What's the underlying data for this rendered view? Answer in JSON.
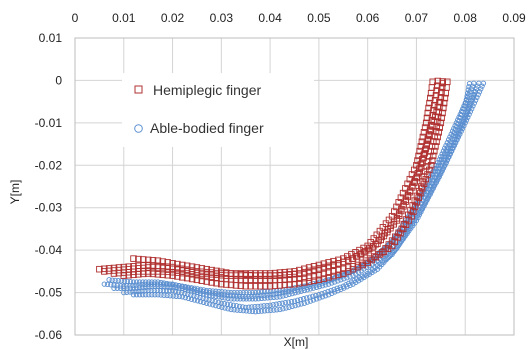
{
  "chart_data": {
    "type": "scatter",
    "xlabel": "X[m]",
    "ylabel": "Y[m]",
    "xlim": [
      0,
      0.09
    ],
    "ylim": [
      -0.06,
      0.01
    ],
    "x_ticks": [
      "0",
      "0.01",
      "0.02",
      "0.03",
      "0.04",
      "0.05",
      "0.06",
      "0.07",
      "0.08",
      "0.09"
    ],
    "y_ticks": [
      "0.01",
      "0",
      "-0.01",
      "-0.02",
      "-0.03",
      "-0.04",
      "-0.05",
      "-0.06"
    ],
    "x_axis_position": "top",
    "grid": true,
    "legend_position": "upper-left",
    "colors": {
      "hemiplegic": "#b03030",
      "able_bodied": "#5b8fd0"
    },
    "series": [
      {
        "name": "Hemiplegic finger",
        "marker": "square",
        "curves": [
          [
            [
              0.005,
              -0.0445
            ],
            [
              0.01,
              -0.044
            ],
            [
              0.015,
              -0.0435
            ],
            [
              0.02,
              -0.044
            ],
            [
              0.025,
              -0.045
            ],
            [
              0.03,
              -0.0455
            ],
            [
              0.035,
              -0.0455
            ],
            [
              0.04,
              -0.0455
            ],
            [
              0.045,
              -0.045
            ],
            [
              0.05,
              -0.0435
            ],
            [
              0.055,
              -0.042
            ],
            [
              0.06,
              -0.039
            ],
            [
              0.065,
              -0.032
            ],
            [
              0.07,
              -0.02
            ],
            [
              0.072,
              -0.01
            ],
            [
              0.073,
              -0.003
            ],
            [
              0.0735,
              0.001
            ]
          ],
          [
            [
              0.006,
              -0.045
            ],
            [
              0.011,
              -0.0445
            ],
            [
              0.016,
              -0.044
            ],
            [
              0.021,
              -0.0445
            ],
            [
              0.026,
              -0.0455
            ],
            [
              0.031,
              -0.046
            ],
            [
              0.036,
              -0.046
            ],
            [
              0.041,
              -0.046
            ],
            [
              0.046,
              -0.0455
            ],
            [
              0.051,
              -0.044
            ],
            [
              0.056,
              -0.0425
            ],
            [
              0.061,
              -0.0395
            ],
            [
              0.066,
              -0.0325
            ],
            [
              0.071,
              -0.0205
            ],
            [
              0.073,
              -0.0105
            ],
            [
              0.074,
              -0.0035
            ],
            [
              0.0745,
              0.001
            ]
          ],
          [
            [
              0.008,
              -0.0455
            ],
            [
              0.013,
              -0.045
            ],
            [
              0.018,
              -0.045
            ],
            [
              0.023,
              -0.0455
            ],
            [
              0.028,
              -0.0465
            ],
            [
              0.033,
              -0.047
            ],
            [
              0.038,
              -0.047
            ],
            [
              0.043,
              -0.047
            ],
            [
              0.048,
              -0.0465
            ],
            [
              0.053,
              -0.045
            ],
            [
              0.058,
              -0.0435
            ],
            [
              0.063,
              -0.0405
            ],
            [
              0.067,
              -0.035
            ],
            [
              0.071,
              -0.025
            ],
            [
              0.074,
              -0.012
            ],
            [
              0.075,
              -0.004
            ],
            [
              0.0755,
              0.001
            ]
          ],
          [
            [
              0.01,
              -0.046
            ],
            [
              0.015,
              -0.0455
            ],
            [
              0.02,
              -0.046
            ],
            [
              0.025,
              -0.047
            ],
            [
              0.03,
              -0.048
            ],
            [
              0.035,
              -0.0485
            ],
            [
              0.04,
              -0.0485
            ],
            [
              0.045,
              -0.048
            ],
            [
              0.05,
              -0.047
            ],
            [
              0.055,
              -0.0455
            ],
            [
              0.06,
              -0.043
            ],
            [
              0.065,
              -0.039
            ],
            [
              0.069,
              -0.032
            ],
            [
              0.073,
              -0.02
            ],
            [
              0.075,
              -0.01
            ],
            [
              0.076,
              -0.003
            ],
            [
              0.0765,
              0.001
            ]
          ],
          [
            [
              0.012,
              -0.042
            ],
            [
              0.017,
              -0.0425
            ],
            [
              0.022,
              -0.0435
            ],
            [
              0.027,
              -0.0445
            ],
            [
              0.032,
              -0.0455
            ],
            [
              0.037,
              -0.046
            ],
            [
              0.042,
              -0.046
            ],
            [
              0.047,
              -0.0455
            ],
            [
              0.052,
              -0.044
            ],
            [
              0.057,
              -0.042
            ],
            [
              0.062,
              -0.0385
            ],
            [
              0.066,
              -0.033
            ],
            [
              0.07,
              -0.023
            ],
            [
              0.073,
              -0.012
            ],
            [
              0.075,
              -0.004
            ],
            [
              0.0755,
              0.0005
            ]
          ]
        ]
      },
      {
        "name": "Able-bodied finger",
        "marker": "circle",
        "curves": [
          [
            [
              0.006,
              -0.048
            ],
            [
              0.01,
              -0.0485
            ],
            [
              0.015,
              -0.048
            ],
            [
              0.02,
              -0.048
            ],
            [
              0.025,
              -0.0495
            ],
            [
              0.03,
              -0.0505
            ],
            [
              0.035,
              -0.051
            ],
            [
              0.04,
              -0.0505
            ],
            [
              0.045,
              -0.0495
            ],
            [
              0.05,
              -0.048
            ],
            [
              0.055,
              -0.046
            ],
            [
              0.06,
              -0.043
            ],
            [
              0.065,
              -0.038
            ],
            [
              0.07,
              -0.029
            ],
            [
              0.075,
              -0.018
            ],
            [
              0.079,
              -0.008
            ],
            [
              0.082,
              0.0
            ]
          ],
          [
            [
              0.008,
              -0.049
            ],
            [
              0.012,
              -0.049
            ],
            [
              0.017,
              -0.0485
            ],
            [
              0.022,
              -0.049
            ],
            [
              0.027,
              -0.0505
            ],
            [
              0.032,
              -0.0515
            ],
            [
              0.037,
              -0.0515
            ],
            [
              0.042,
              -0.051
            ],
            [
              0.047,
              -0.0495
            ],
            [
              0.052,
              -0.048
            ],
            [
              0.057,
              -0.046
            ],
            [
              0.062,
              -0.0425
            ],
            [
              0.067,
              -0.037
            ],
            [
              0.072,
              -0.027
            ],
            [
              0.077,
              -0.016
            ],
            [
              0.081,
              -0.006
            ],
            [
              0.083,
              0.0
            ]
          ],
          [
            [
              0.01,
              -0.05
            ],
            [
              0.015,
              -0.0495
            ],
            [
              0.02,
              -0.0495
            ],
            [
              0.025,
              -0.051
            ],
            [
              0.03,
              -0.0525
            ],
            [
              0.035,
              -0.0535
            ],
            [
              0.04,
              -0.053
            ],
            [
              0.045,
              -0.052
            ],
            [
              0.05,
              -0.0505
            ],
            [
              0.055,
              -0.0485
            ],
            [
              0.06,
              -0.0455
            ],
            [
              0.065,
              -0.041
            ],
            [
              0.07,
              -0.033
            ],
            [
              0.075,
              -0.022
            ],
            [
              0.08,
              -0.01
            ],
            [
              0.084,
              0.0
            ]
          ],
          [
            [
              0.012,
              -0.0505
            ],
            [
              0.017,
              -0.0505
            ],
            [
              0.022,
              -0.051
            ],
            [
              0.027,
              -0.0525
            ],
            [
              0.032,
              -0.054
            ],
            [
              0.037,
              -0.0545
            ],
            [
              0.042,
              -0.054
            ],
            [
              0.047,
              -0.0525
            ],
            [
              0.052,
              -0.0505
            ],
            [
              0.057,
              -0.048
            ],
            [
              0.062,
              -0.0445
            ],
            [
              0.066,
              -0.0395
            ],
            [
              0.071,
              -0.0305
            ],
            [
              0.076,
              -0.0195
            ],
            [
              0.08,
              -0.009
            ],
            [
              0.082,
              -0.002
            ]
          ],
          [
            [
              0.007,
              -0.047
            ],
            [
              0.012,
              -0.0475
            ],
            [
              0.017,
              -0.0475
            ],
            [
              0.022,
              -0.0485
            ],
            [
              0.027,
              -0.0495
            ],
            [
              0.032,
              -0.05
            ],
            [
              0.037,
              -0.05
            ],
            [
              0.042,
              -0.0495
            ],
            [
              0.047,
              -0.0485
            ],
            [
              0.052,
              -0.047
            ],
            [
              0.057,
              -0.045
            ],
            [
              0.062,
              -0.0415
            ],
            [
              0.067,
              -0.0355
            ],
            [
              0.072,
              -0.0255
            ],
            [
              0.077,
              -0.0145
            ],
            [
              0.08,
              -0.006
            ],
            [
              0.081,
              0.0
            ]
          ]
        ]
      }
    ]
  }
}
